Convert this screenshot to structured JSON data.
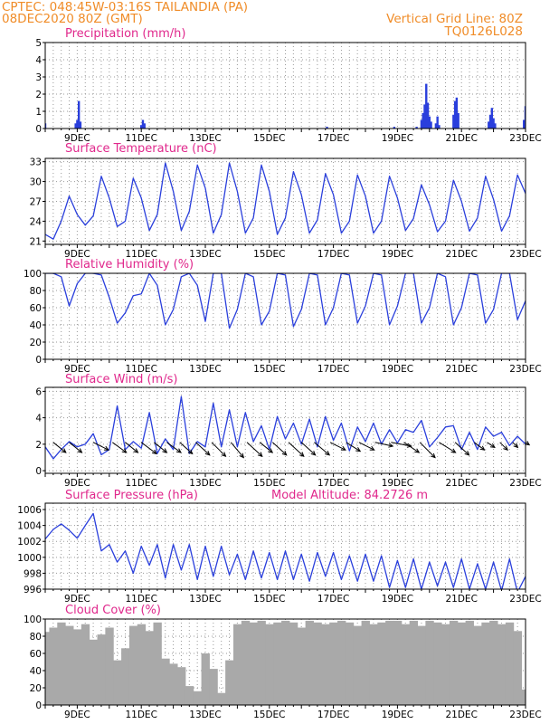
{
  "header": {
    "line1": "CPTEC:   048:45W-03:16S   TAILANDIA (PA)",
    "line2": "08DEC2020 80Z (GMT)",
    "right1": "Vertical Grid Line: 80Z",
    "right2": "TQ0126L028"
  },
  "colors": {
    "series": "#2a3fdc",
    "cloud": "#a9a9a9",
    "title": "#e0288c",
    "header": "#f08c28"
  },
  "chart_data": [
    {
      "type": "bar",
      "title": "Precipitation (mm/h)",
      "xticks": [
        "9DEC",
        "11DEC",
        "13DEC",
        "15DEC",
        "17DEC",
        "19DEC",
        "21DEC",
        "23DEC"
      ],
      "ylim": [
        0,
        5
      ],
      "yticks": [
        "0",
        "1",
        "2",
        "3",
        "4",
        "5"
      ],
      "bars": [
        [
          8.0,
          0.3
        ],
        [
          8.95,
          0.3
        ],
        [
          9.0,
          0.5
        ],
        [
          9.05,
          1.6
        ],
        [
          9.1,
          0.4
        ],
        [
          11.0,
          0.2
        ],
        [
          11.05,
          0.5
        ],
        [
          11.1,
          0.3
        ],
        [
          16.8,
          0.1
        ],
        [
          18.9,
          0.1
        ],
        [
          19.6,
          0.1
        ],
        [
          19.75,
          0.5
        ],
        [
          19.8,
          0.9
        ],
        [
          19.85,
          1.4
        ],
        [
          19.9,
          2.6
        ],
        [
          19.95,
          1.5
        ],
        [
          20.0,
          0.7
        ],
        [
          20.05,
          0.4
        ],
        [
          20.2,
          0.3
        ],
        [
          20.25,
          0.7
        ],
        [
          20.3,
          0.2
        ],
        [
          20.75,
          0.8
        ],
        [
          20.8,
          1.6
        ],
        [
          20.85,
          1.8
        ],
        [
          20.9,
          0.9
        ],
        [
          21.85,
          0.4
        ],
        [
          21.9,
          0.8
        ],
        [
          21.95,
          1.2
        ],
        [
          22.0,
          0.6
        ],
        [
          22.05,
          0.3
        ],
        [
          22.95,
          0.5
        ],
        [
          23.0,
          1.3
        ]
      ]
    },
    {
      "type": "line",
      "title": "Surface Temperature (nC)",
      "xticks": [
        "9DEC",
        "11DEC",
        "13DEC",
        "15DEC",
        "17DEC",
        "19DEC",
        "21DEC",
        "23DEC"
      ],
      "ylim": [
        20.5,
        33.5
      ],
      "yticks": [
        "21",
        "24",
        "27",
        "30",
        "33"
      ],
      "x": [
        8.0,
        8.25,
        8.5,
        8.75,
        9.0,
        9.25,
        9.5,
        9.75,
        10.0,
        10.25,
        10.5,
        10.75,
        11.0,
        11.25,
        11.5,
        11.75,
        12.0,
        12.25,
        12.5,
        12.75,
        13.0,
        13.25,
        13.5,
        13.75,
        14.0,
        14.25,
        14.5,
        14.75,
        15.0,
        15.25,
        15.5,
        15.75,
        16.0,
        16.25,
        16.5,
        16.75,
        17.0,
        17.25,
        17.5,
        17.75,
        18.0,
        18.25,
        18.5,
        18.75,
        19.0,
        19.25,
        19.5,
        19.75,
        20.0,
        20.25,
        20.5,
        20.75,
        21.0,
        21.25,
        21.5,
        21.75,
        22.0,
        22.25,
        22.5,
        22.75,
        23.0
      ],
      "values": [
        22.0,
        21.3,
        24.0,
        27.8,
        25.0,
        23.4,
        24.8,
        30.8,
        27.5,
        23.2,
        24.0,
        30.5,
        27.5,
        22.6,
        25.0,
        32.8,
        28.5,
        22.6,
        25.5,
        32.5,
        29.0,
        22.2,
        25.0,
        32.8,
        28.5,
        22.2,
        24.5,
        32.5,
        28.5,
        22.0,
        24.5,
        31.5,
        28.0,
        22.2,
        24.2,
        31.2,
        28.0,
        22.2,
        24.0,
        31.0,
        27.8,
        22.2,
        24.0,
        30.8,
        27.5,
        22.6,
        24.4,
        29.5,
        26.5,
        22.4,
        24.0,
        30.2,
        27.0,
        22.5,
        24.5,
        30.8,
        27.3,
        22.5,
        24.8,
        31.0,
        28.2
      ]
    },
    {
      "type": "line",
      "title": "Relative Humidity (%)",
      "xticks": [
        "9DEC",
        "11DEC",
        "13DEC",
        "15DEC",
        "17DEC",
        "19DEC",
        "21DEC",
        "23DEC"
      ],
      "ylim": [
        0,
        100
      ],
      "yticks": [
        "0",
        "20",
        "40",
        "60",
        "80",
        "100"
      ],
      "x": [
        8.0,
        8.25,
        8.5,
        8.75,
        9.0,
        9.25,
        9.5,
        9.75,
        10.0,
        10.25,
        10.5,
        10.75,
        11.0,
        11.25,
        11.5,
        11.75,
        12.0,
        12.25,
        12.5,
        12.75,
        13.0,
        13.25,
        13.5,
        13.75,
        14.0,
        14.25,
        14.5,
        14.75,
        15.0,
        15.25,
        15.5,
        15.75,
        16.0,
        16.25,
        16.5,
        16.75,
        17.0,
        17.25,
        17.5,
        17.75,
        18.0,
        18.25,
        18.5,
        18.75,
        19.0,
        19.25,
        19.5,
        19.75,
        20.0,
        20.25,
        20.5,
        20.75,
        21.0,
        21.25,
        21.5,
        21.75,
        22.0,
        22.25,
        22.5,
        22.75,
        23.0
      ],
      "values": [
        100,
        100,
        96,
        62,
        88,
        100,
        100,
        98,
        72,
        42,
        54,
        74,
        76,
        100,
        86,
        40,
        58,
        96,
        100,
        86,
        44,
        100,
        100,
        36,
        58,
        100,
        96,
        40,
        56,
        100,
        98,
        38,
        58,
        100,
        98,
        40,
        60,
        100,
        98,
        42,
        62,
        100,
        98,
        40,
        62,
        100,
        100,
        42,
        60,
        100,
        96,
        40,
        60,
        100,
        98,
        42,
        58,
        100,
        100,
        46,
        68
      ]
    },
    {
      "type": "line",
      "title": "Surface Wind (m/s)",
      "xticks": [
        "9DEC",
        "11DEC",
        "13DEC",
        "15DEC",
        "17DEC",
        "19DEC",
        "21DEC",
        "23DEC"
      ],
      "ylim": [
        -0.2,
        6.3
      ],
      "yticks": [
        "0",
        "2",
        "4",
        "6"
      ],
      "x": [
        8.0,
        8.25,
        8.5,
        8.75,
        9.0,
        9.25,
        9.5,
        9.75,
        10.0,
        10.25,
        10.5,
        10.75,
        11.0,
        11.25,
        11.5,
        11.75,
        12.0,
        12.25,
        12.5,
        12.75,
        13.0,
        13.25,
        13.5,
        13.75,
        14.0,
        14.25,
        14.5,
        14.75,
        15.0,
        15.25,
        15.5,
        15.75,
        16.0,
        16.25,
        16.5,
        16.75,
        17.0,
        17.25,
        17.5,
        17.75,
        18.0,
        18.25,
        18.5,
        18.75,
        19.0,
        19.25,
        19.5,
        19.75,
        20.0,
        20.25,
        20.5,
        20.75,
        21.0,
        21.25,
        21.5,
        21.75,
        22.0,
        22.25,
        22.5,
        22.75,
        23.0
      ],
      "values": [
        1.8,
        0.9,
        1.6,
        2.2,
        1.8,
        2.0,
        2.8,
        1.2,
        1.6,
        4.9,
        1.6,
        2.2,
        1.7,
        4.4,
        1.3,
        2.4,
        1.6,
        5.6,
        1.3,
        2.2,
        1.8,
        5.1,
        1.8,
        4.6,
        1.8,
        4.4,
        2.2,
        3.4,
        1.6,
        4.1,
        2.4,
        3.6,
        2.0,
        3.9,
        1.8,
        4.1,
        2.3,
        3.6,
        1.5,
        3.3,
        2.2,
        3.6,
        2.0,
        3.1,
        2.1,
        3.1,
        2.9,
        3.8,
        1.8,
        2.5,
        3.3,
        3.4,
        1.6,
        2.9,
        1.6,
        3.3,
        2.6,
        2.9,
        1.9,
        2.6,
        2.0
      ],
      "vectors": [
        [
          8.25,
          1.0,
          -0.8
        ],
        [
          8.75,
          1.0,
          -0.8
        ],
        [
          9.5,
          1.2,
          -0.6
        ],
        [
          10.1,
          1.1,
          -0.8
        ],
        [
          10.5,
          1.0,
          -0.8
        ],
        [
          11.0,
          1.2,
          -0.9
        ],
        [
          11.4,
          1.0,
          -0.8
        ],
        [
          11.8,
          1.1,
          -0.8
        ],
        [
          12.2,
          1.0,
          -0.9
        ],
        [
          12.7,
          1.1,
          -1.0
        ],
        [
          13.2,
          1.1,
          -1.1
        ],
        [
          13.8,
          1.0,
          -1.2
        ],
        [
          14.3,
          1.2,
          -1.1
        ],
        [
          14.7,
          1.0,
          -0.8
        ],
        [
          15.1,
          1.1,
          -1.0
        ],
        [
          15.6,
          1.2,
          -1.1
        ],
        [
          16.0,
          1.1,
          -1.0
        ],
        [
          16.4,
          1.2,
          -1.0
        ],
        [
          16.9,
          1.2,
          -0.6
        ],
        [
          17.4,
          1.1,
          -0.7
        ],
        [
          17.8,
          1.2,
          -0.6
        ],
        [
          18.3,
          1.4,
          -0.3
        ],
        [
          18.8,
          1.6,
          -0.3
        ],
        [
          19.2,
          1.2,
          -0.8
        ],
        [
          19.7,
          1.2,
          -1.2
        ],
        [
          20.3,
          1.3,
          -0.8
        ],
        [
          20.8,
          1.1,
          -1.0
        ],
        [
          21.4,
          0.8,
          -0.6
        ],
        [
          21.8,
          0.6,
          -0.4
        ],
        [
          22.2,
          0.6,
          -0.6
        ],
        [
          22.6,
          0.4,
          -0.4
        ],
        [
          23.0,
          0.3,
          -0.2
        ]
      ]
    },
    {
      "type": "line",
      "title": "Surface Pressure (hPa)",
      "annotation": "Model Altitude: 84.2726 m",
      "xticks": [
        "9DEC",
        "11DEC",
        "13DEC",
        "15DEC",
        "17DEC",
        "19DEC",
        "21DEC",
        "23DEC"
      ],
      "ylim": [
        996,
        1006.8
      ],
      "yticks": [
        "996",
        "998",
        "1000",
        "1002",
        "1004",
        "1006"
      ],
      "x": [
        8.0,
        8.25,
        8.5,
        8.75,
        9.0,
        9.25,
        9.5,
        9.75,
        10.0,
        10.25,
        10.5,
        10.75,
        11.0,
        11.25,
        11.5,
        11.75,
        12.0,
        12.25,
        12.5,
        12.75,
        13.0,
        13.25,
        13.5,
        13.75,
        14.0,
        14.25,
        14.5,
        14.75,
        15.0,
        15.25,
        15.5,
        15.75,
        16.0,
        16.25,
        16.5,
        16.75,
        17.0,
        17.25,
        17.5,
        17.75,
        18.0,
        18.25,
        18.5,
        18.75,
        19.0,
        19.25,
        19.5,
        19.75,
        20.0,
        20.25,
        20.5,
        20.75,
        21.0,
        21.25,
        21.5,
        21.75,
        22.0,
        22.25,
        22.5,
        22.75,
        23.0
      ],
      "values": [
        1002.3,
        1003.5,
        1004.2,
        1003.4,
        1002.4,
        1004.0,
        1005.5,
        1000.8,
        1001.6,
        999.4,
        1000.8,
        998.0,
        1001.4,
        999.0,
        1001.6,
        997.4,
        1001.6,
        998.4,
        1001.6,
        997.2,
        1001.4,
        997.6,
        1001.4,
        997.8,
        1000.4,
        997.2,
        1000.8,
        997.4,
        1000.6,
        997.2,
        1000.8,
        997.2,
        1000.4,
        997.0,
        1000.6,
        997.6,
        1000.6,
        997.2,
        1000.2,
        997.0,
        1000.4,
        997.0,
        1000.2,
        996.2,
        999.6,
        996.2,
        999.8,
        996.0,
        999.4,
        996.4,
        999.4,
        996.2,
        999.8,
        996.0,
        999.2,
        996.0,
        999.4,
        995.8,
        999.8,
        995.6,
        997.6
      ]
    },
    {
      "type": "bar",
      "title": "Cloud Cover (%)",
      "xticks": [
        "9DEC",
        "11DEC",
        "13DEC",
        "15DEC",
        "17DEC",
        "19DEC",
        "21DEC",
        "23DEC"
      ],
      "ylim": [
        0,
        100
      ],
      "yticks": [
        "0",
        "20",
        "40",
        "60",
        "80",
        "100"
      ],
      "x": [
        8.0,
        8.25,
        8.5,
        8.75,
        9.0,
        9.25,
        9.5,
        9.75,
        10.0,
        10.25,
        10.5,
        10.75,
        11.0,
        11.25,
        11.5,
        11.75,
        12.0,
        12.25,
        12.5,
        12.75,
        13.0,
        13.25,
        13.5,
        13.75,
        14.0,
        14.25,
        14.5,
        14.75,
        15.0,
        15.25,
        15.5,
        15.75,
        16.0,
        16.25,
        16.5,
        16.75,
        17.0,
        17.25,
        17.5,
        17.75,
        18.0,
        18.25,
        18.5,
        18.75,
        19.0,
        19.25,
        19.5,
        19.75,
        20.0,
        20.25,
        20.5,
        20.75,
        21.0,
        21.25,
        21.5,
        21.75,
        22.0,
        22.25,
        22.5,
        22.75,
        23.0
      ],
      "values": [
        85,
        90,
        96,
        92,
        88,
        94,
        76,
        82,
        90,
        52,
        66,
        92,
        94,
        86,
        96,
        54,
        48,
        44,
        22,
        16,
        60,
        42,
        14,
        52,
        94,
        98,
        96,
        98,
        94,
        96,
        98,
        96,
        90,
        98,
        96,
        94,
        96,
        98,
        96,
        92,
        98,
        94,
        96,
        98,
        98,
        94,
        98,
        92,
        98,
        96,
        94,
        98,
        96,
        98,
        92,
        96,
        98,
        94,
        96,
        86,
        18
      ]
    }
  ]
}
